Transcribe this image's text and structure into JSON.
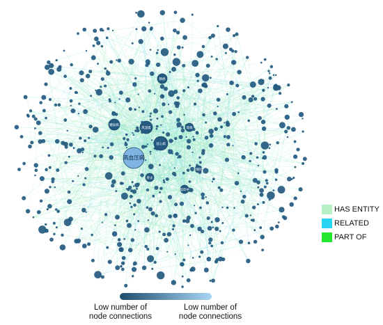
{
  "graph": {
    "node_color": "#245a80",
    "hub_color": "#7fb4e2",
    "hubs": [
      {
        "label": "高血压病"
      },
      {
        "label": "风湿类"
      },
      {
        "label": "冠心病"
      },
      {
        "label": "糖尿病"
      },
      {
        "label": "肺癌"
      },
      {
        "label": "肾病"
      },
      {
        "label": "肝炎"
      },
      {
        "label": "脑卒中"
      },
      {
        "label": "抑郁症"
      }
    ]
  },
  "legend": {
    "items": [
      {
        "label": "HAS ENTITY",
        "color": "#b6efc4"
      },
      {
        "label": "RELATED",
        "color": "#29d4f2"
      },
      {
        "label": "PART OF",
        "color": "#23e62e"
      }
    ]
  },
  "scale": {
    "gradient_start": "#1f4d6e",
    "gradient_end": "#a9d4f4",
    "left_line1": "Low number of",
    "left_line2": "node connections",
    "right_line1": "Low number of",
    "right_line2": "node connections"
  }
}
